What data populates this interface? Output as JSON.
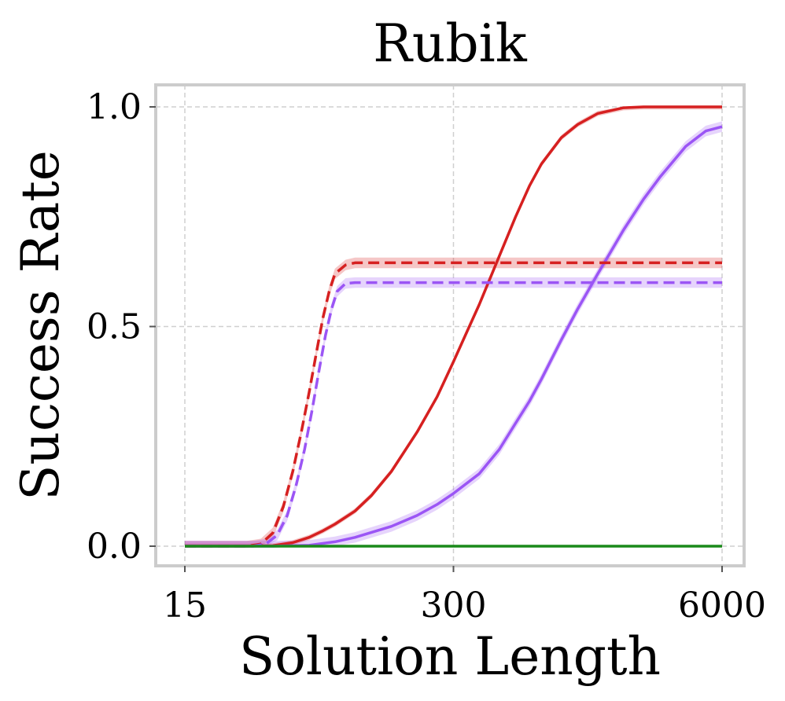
{
  "chart_data": {
    "type": "line",
    "title": "Rubik",
    "xlabel": "Solution Length",
    "ylabel": "Success Rate",
    "xscale": "log",
    "xlim": [
      15,
      6000
    ],
    "ylim": [
      0,
      1
    ],
    "xticks": [
      15,
      300,
      6000
    ],
    "xtick_labels": [
      "15",
      "300",
      "6000"
    ],
    "yticks": [
      0,
      0.5,
      1
    ],
    "ytick_labels": [
      "0.0",
      "0.5",
      "1.0"
    ],
    "grid": true,
    "legend": "none",
    "series": [
      {
        "color": "#d62020",
        "dash": false,
        "band": 0.006,
        "x": [
          15,
          30,
          40,
          50,
          60,
          70,
          80,
          100,
          120,
          150,
          200,
          250,
          300,
          350,
          400,
          500,
          600,
          700,
          800,
          1000,
          1200,
          1500,
          2000,
          2500,
          3000,
          4000,
          5000,
          6000
        ],
        "y": [
          0.0,
          0.0,
          0.001,
          0.008,
          0.02,
          0.035,
          0.05,
          0.08,
          0.115,
          0.17,
          0.26,
          0.34,
          0.42,
          0.49,
          0.55,
          0.66,
          0.75,
          0.82,
          0.87,
          0.93,
          0.96,
          0.985,
          0.998,
          1.0,
          1.0,
          1.0,
          1.0,
          1.0
        ]
      },
      {
        "color": "#9b55f5",
        "dash": false,
        "band": 0.012,
        "x": [
          15,
          40,
          60,
          80,
          100,
          150,
          200,
          250,
          300,
          400,
          500,
          600,
          700,
          800,
          1000,
          1200,
          1500,
          2000,
          2500,
          3000,
          4000,
          5000,
          6000
        ],
        "y": [
          0.0,
          0.0,
          0.002,
          0.01,
          0.02,
          0.045,
          0.07,
          0.095,
          0.12,
          0.165,
          0.22,
          0.28,
          0.33,
          0.38,
          0.47,
          0.54,
          0.62,
          0.72,
          0.79,
          0.84,
          0.91,
          0.945,
          0.955
        ]
      },
      {
        "color": "#d62020",
        "dash": true,
        "band": 0.012,
        "x": [
          15,
          30,
          35,
          40,
          45,
          50,
          55,
          60,
          65,
          70,
          75,
          80,
          90,
          100,
          120,
          150,
          300,
          1000,
          6000
        ],
        "y": [
          0.0,
          0.0,
          0.005,
          0.03,
          0.09,
          0.17,
          0.26,
          0.35,
          0.44,
          0.52,
          0.58,
          0.62,
          0.64,
          0.645,
          0.645,
          0.645,
          0.645,
          0.645,
          0.645
        ]
      },
      {
        "color": "#9b55f5",
        "dash": true,
        "band": 0.012,
        "x": [
          15,
          32,
          37,
          42,
          47,
          52,
          57,
          62,
          67,
          72,
          77,
          82,
          90,
          100,
          120,
          150,
          300,
          1000,
          6000
        ],
        "y": [
          0.0,
          0.0,
          0.005,
          0.025,
          0.07,
          0.14,
          0.22,
          0.31,
          0.4,
          0.48,
          0.54,
          0.58,
          0.598,
          0.6,
          0.6,
          0.6,
          0.6,
          0.6,
          0.6
        ]
      },
      {
        "color": "#1a8a1a",
        "dash": false,
        "band": 0,
        "x": [
          15,
          6000
        ],
        "y": [
          0.0,
          0.0
        ]
      }
    ]
  }
}
